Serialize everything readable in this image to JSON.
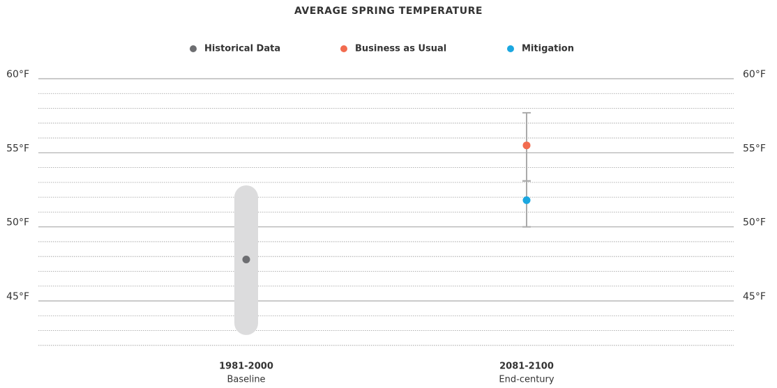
{
  "chart_data": {
    "type": "range-dot",
    "title": "AVERAGE SPRING TEMPERATURE",
    "categories": [
      "1981-2000",
      "2081-2100"
    ],
    "category_sublabels": [
      "Baseline",
      "End-century"
    ],
    "series": [
      {
        "name": "Historical Data",
        "color": "#6d6e71",
        "values": [
          47.8,
          null
        ],
        "low": [
          42.7,
          null
        ],
        "high": [
          52.8,
          null
        ]
      },
      {
        "name": "Business as Usual",
        "color": "#f26b4f",
        "values": [
          null,
          55.5
        ],
        "low": [
          null,
          53.1
        ],
        "high": [
          null,
          57.7
        ]
      },
      {
        "name": "Mitigation",
        "color": "#1ba7e0",
        "values": [
          null,
          51.8
        ],
        "low": [
          null,
          50.0
        ],
        "high": [
          null,
          53.1
        ]
      }
    ],
    "ylim": [
      42,
      60
    ],
    "yticks": [
      {
        "value": 45,
        "label": "45°F"
      },
      {
        "value": 50,
        "label": "50°F"
      },
      {
        "value": 55,
        "label": "55°F"
      },
      {
        "value": 60,
        "label": "60°F"
      }
    ],
    "minor_yticks": [
      42,
      43,
      44,
      46,
      47,
      48,
      49,
      51,
      52,
      53,
      54,
      56,
      57,
      58,
      59
    ],
    "grid": true
  }
}
